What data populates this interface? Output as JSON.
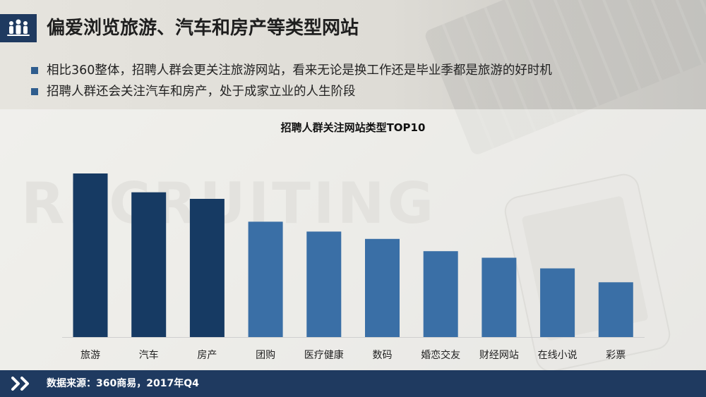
{
  "header": {
    "title": "偏爱浏览旅游、汽车和房产等类型网站",
    "logo_icon": "team-people-icon"
  },
  "bullets": [
    "相比360整体，招聘人群会更关注旅游网站，看来无论是换工作还是毕业季都是旅游的好时机",
    "招聘人群还会关注汽车和房产，处于成家立业的人生阶段"
  ],
  "background_word": "RECRUITING",
  "colors": {
    "dark_bar": "#163a63",
    "light_bar": "#3a6fa6",
    "accent": "#1f3a60"
  },
  "chart_data": {
    "type": "bar",
    "title": "招聘人群关注网站类型TOP10",
    "categories": [
      "旅游",
      "汽车",
      "房产",
      "团购",
      "医疗健康",
      "数码",
      "婚恋交友",
      "财经网站",
      "在线小说",
      "彩票"
    ],
    "values": [
      100,
      88.5,
      84.5,
      70.5,
      64.5,
      60,
      52.5,
      48.5,
      42,
      33.5
    ],
    "highlight_count": 3,
    "ylim": [
      0,
      100
    ],
    "grid": false,
    "xlabel": "",
    "ylabel": ""
  },
  "footer": {
    "icon": "double-chevron-right-icon",
    "source": "数据来源：360商易，2017年Q4"
  }
}
